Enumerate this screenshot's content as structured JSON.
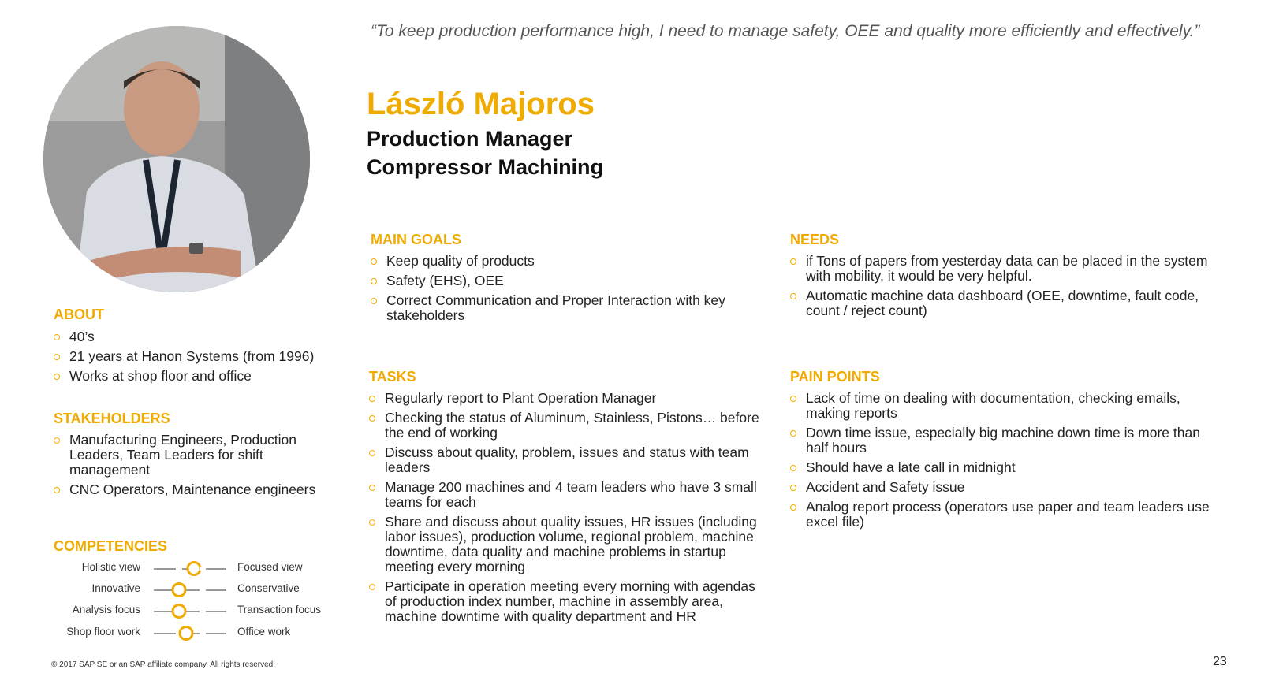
{
  "quote": "“To keep production performance high, I need to manage safety, OEE and quality more efficiently and effectively.”",
  "persona": {
    "name": "László Majoros",
    "title_line1": "Production Manager",
    "title_line2": "Compressor Machining"
  },
  "about": {
    "heading": "ABOUT",
    "items": [
      "40’s",
      "21 years at Hanon Systems (from 1996)",
      "Works at shop floor and office"
    ]
  },
  "stakeholders": {
    "heading": "STAKEHOLDERS",
    "items": [
      "Manufacturing Engineers, Production Leaders, Team Leaders for shift management",
      "CNC Operators, Maintenance engineers"
    ]
  },
  "competencies": {
    "heading": "COMPETENCIES",
    "rows": [
      {
        "left": "Holistic view",
        "right": "Focused view",
        "level": 0.55
      },
      {
        "left": "Innovative",
        "right": "Conservative",
        "level": 0.35
      },
      {
        "left": "Analysis focus",
        "right": "Transaction focus",
        "level": 0.35
      },
      {
        "left": "Shop floor work",
        "right": "Office work",
        "level": 0.45
      }
    ]
  },
  "main_goals": {
    "heading": "MAIN GOALS",
    "items": [
      "Keep quality of products",
      "Safety (EHS), OEE",
      "Correct Communication and Proper Interaction with key stakeholders"
    ]
  },
  "tasks": {
    "heading": "TASKS",
    "items": [
      "Regularly report to Plant Operation Manager",
      "Checking the status of Aluminum, Stainless, Pistons… before the end of working",
      "Discuss about quality, problem, issues and status with team leaders",
      "Manage 200 machines and 4 team leaders who have 3 small teams for each",
      "Share and discuss about quality issues, HR issues (including labor issues), production volume, regional problem, machine downtime, data quality and machine problems in startup meeting every morning",
      "Participate in operation meeting every morning with agendas of production index number, machine in assembly area, machine downtime with quality department and HR"
    ]
  },
  "needs": {
    "heading": "NEEDS",
    "items": [
      "if Tons of papers from yesterday data can be placed in the system with mobility, it would be very helpful.",
      "Automatic machine data dashboard (OEE, downtime, fault code, count / reject count)"
    ]
  },
  "pain_points": {
    "heading": "PAIN POINTS",
    "items": [
      "Lack of time on dealing with documentation, checking emails, making reports",
      "Down time issue, especially big machine down time is more than half hours",
      "Should have a late call in midnight",
      "Accident and Safety issue",
      "Analog report process (operators use paper and team leaders use excel file)"
    ]
  },
  "footer": {
    "copyright": "© 2017 SAP SE or an SAP affiliate company. All rights reserved.",
    "page_number": "23"
  },
  "colors": {
    "accent": "#f0ab00",
    "text": "#222222"
  }
}
